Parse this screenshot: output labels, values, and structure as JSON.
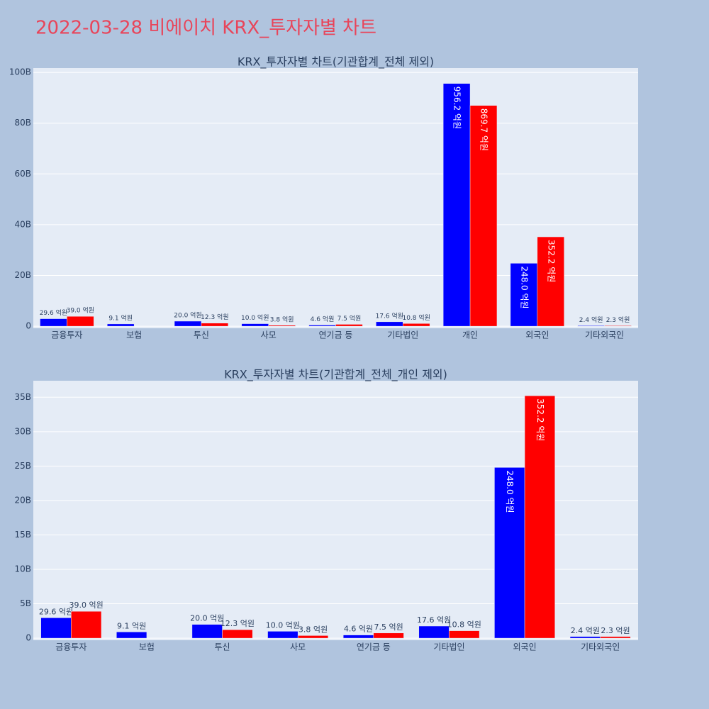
{
  "title": "2022-03-28 비에이치 KRX_투자자별 차트",
  "chart_data": [
    {
      "type": "bar",
      "title": "KRX_투자자별 차트(기관합계_전체 제외)",
      "categories": [
        "금융투자",
        "보험",
        "투신",
        "사모",
        "연기금 등",
        "기타법인",
        "개인",
        "외국인",
        "기타외국인"
      ],
      "series": [
        {
          "color": "#0000ff",
          "values": [
            2960000000,
            910000000,
            2000000000,
            1000000000,
            460000000,
            1760000000,
            95620000000,
            24800000000,
            240000000
          ],
          "value_labels": [
            "29.6 억원",
            "9.1 억원",
            "20.0 억원",
            "10.0 억원",
            "4.6 억원",
            "17.6 억원",
            "956.2 억원",
            "248.0 억원",
            "2.4 억원"
          ]
        },
        {
          "color": "#ff0000",
          "values": [
            3900000000,
            null,
            1230000000,
            380000000,
            750000000,
            1080000000,
            86970000000,
            35220000000,
            230000000
          ],
          "value_labels": [
            "39.0 억원",
            null,
            "12.3 억원",
            "3.8 억원",
            "7.5 억원",
            "10.8 억원",
            "869.7 억원",
            "352.2 억원",
            "2.3 억원"
          ]
        }
      ],
      "ylim": [
        -800000000,
        101700000000
      ],
      "yticks": [
        0,
        {
          "value": 20000000000,
          "label": "20B"
        },
        {
          "value": 40000000000,
          "label": "40B"
        },
        {
          "value": 60000000000,
          "label": "60B"
        },
        {
          "value": 80000000000,
          "label": "80B"
        },
        {
          "value": 100000000000,
          "label": "100B"
        }
      ],
      "grid": true
    },
    {
      "type": "bar",
      "title": "KRX_투자자별 차트(기관합계_전체_개인 제외)",
      "categories": [
        "금융투자",
        "보험",
        "투신",
        "사모",
        "연기금 등",
        "기타법인",
        "외국인",
        "기타외국인"
      ],
      "series": [
        {
          "color": "#0000ff",
          "values": [
            2960000000,
            910000000,
            2000000000,
            1000000000,
            460000000,
            1760000000,
            24800000000,
            240000000
          ],
          "value_labels": [
            "29.6 억원",
            "9.1 억원",
            "20.0 억원",
            "10.0 억원",
            "4.6 억원",
            "17.6 억원",
            "248.0 억원",
            "2.4 억원"
          ]
        },
        {
          "color": "#ff0000",
          "values": [
            3900000000,
            null,
            1230000000,
            380000000,
            750000000,
            1080000000,
            35220000000,
            230000000
          ],
          "value_labels": [
            "39.0 억원",
            null,
            "12.3 억원",
            "3.8 억원",
            "7.5 억원",
            "10.8 억원",
            "352.2 억원",
            "2.3 억원"
          ]
        }
      ],
      "ylim": [
        -300000000,
        37400000000
      ],
      "yticks": [
        0,
        {
          "value": 5000000000,
          "label": "5B"
        },
        {
          "value": 10000000000,
          "label": "10B"
        },
        {
          "value": 15000000000,
          "label": "15B"
        },
        {
          "value": 20000000000,
          "label": "20B"
        },
        {
          "value": 25000000000,
          "label": "25B"
        },
        {
          "value": 30000000000,
          "label": "30B"
        },
        {
          "value": 35000000000,
          "label": "35B"
        }
      ],
      "grid": true
    }
  ]
}
